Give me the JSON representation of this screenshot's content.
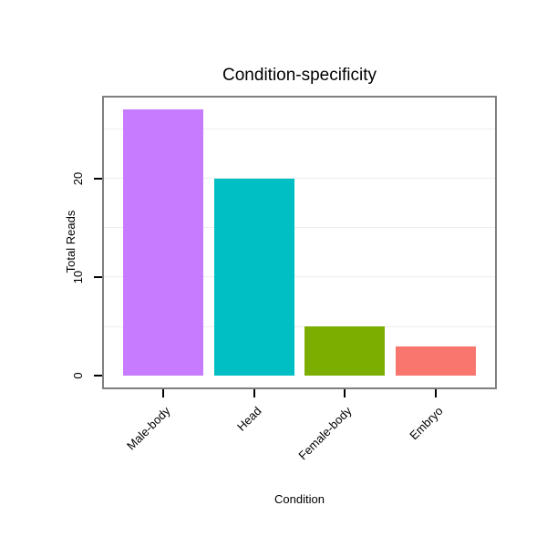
{
  "chart_data": {
    "type": "bar",
    "title": "Condition-specificity",
    "xlabel": "Condition",
    "ylabel": "Total Reads",
    "categories": [
      "Male-body",
      "Head",
      "Female-body",
      "Embryo"
    ],
    "values": [
      27,
      20,
      5,
      3
    ],
    "colors": [
      "#C77CFF",
      "#00BFC4",
      "#7CAE00",
      "#F8766D"
    ],
    "ylim": [
      -1.35,
      28.35
    ],
    "yticks": [
      0,
      10,
      20
    ],
    "gridlines": [
      5,
      10,
      15,
      20,
      25
    ],
    "grid": "light horizontal gridlines on white background",
    "legend": "none",
    "plot_border_color": "#7f7f7f",
    "x_label_rotation_deg": 45
  }
}
